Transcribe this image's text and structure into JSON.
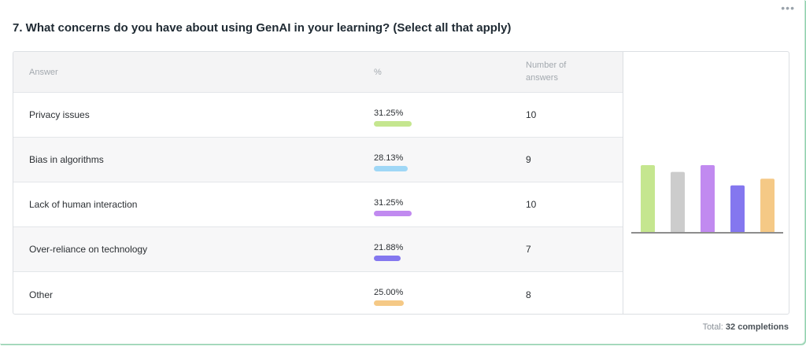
{
  "question": {
    "title": "7. What concerns do you have about using GenAI in your learning? (Select all that apply)",
    "menu_icon": "more-dots-icon"
  },
  "table": {
    "headers": {
      "answer": "Answer",
      "percent": "%",
      "count": "Number of answers"
    },
    "rows": [
      {
        "answer": "Privacy issues",
        "percent": "31.25%",
        "count": "10",
        "color": "#c5e68f"
      },
      {
        "answer": "Bias in algorithms",
        "percent": "28.13%",
        "count": "9",
        "color": "#9fd7f6"
      },
      {
        "answer": "Lack of human interaction",
        "percent": "31.25%",
        "count": "10",
        "color": "#c18af0"
      },
      {
        "answer": "Over-reliance on technology",
        "percent": "21.88%",
        "count": "7",
        "color": "#8477ef"
      },
      {
        "answer": "Other",
        "percent": "25.00%",
        "count": "8",
        "color": "#f5c986"
      }
    ]
  },
  "chart_data": {
    "type": "bar",
    "categories": [
      "Privacy issues",
      "Bias in algorithms",
      "Lack of human interaction",
      "Over-reliance on technology",
      "Other"
    ],
    "values": [
      10,
      9,
      10,
      7,
      8
    ],
    "colors": [
      "#c5e68f",
      "#cccccc",
      "#c18af0",
      "#8477ef",
      "#f5c986"
    ],
    "title": "",
    "xlabel": "",
    "ylabel": "",
    "ylim": [
      0,
      10
    ],
    "grid": false,
    "legend": "none"
  },
  "footer": {
    "total_label": "Total:",
    "total_value": "32 completions"
  }
}
